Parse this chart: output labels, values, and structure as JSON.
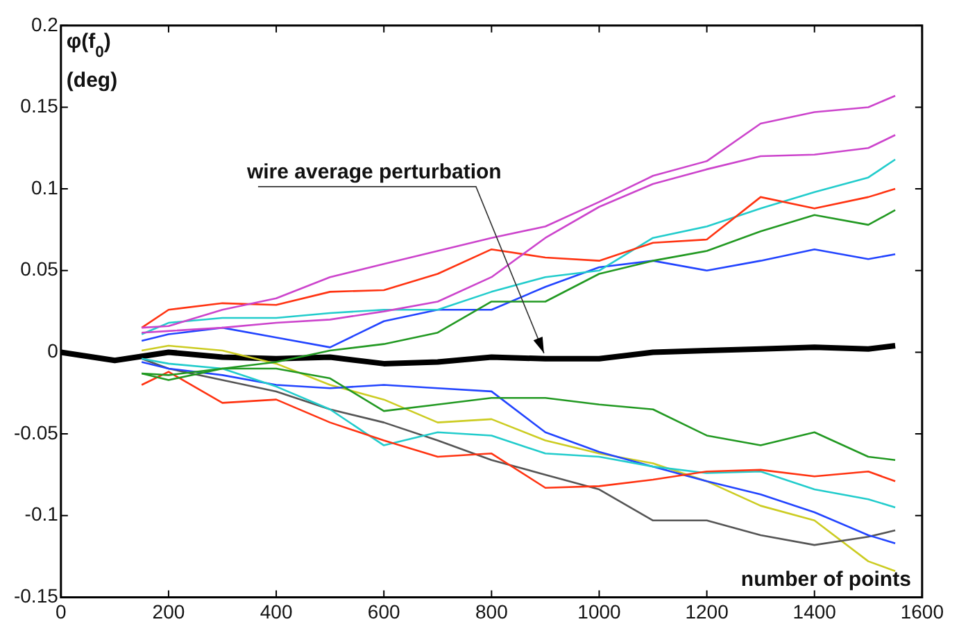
{
  "chart_data": {
    "type": "line",
    "xlabel": "number of points",
    "ylabel": "φ(f$_{0}$)\n(deg)",
    "x": [
      150,
      200,
      300,
      400,
      500,
      600,
      700,
      800,
      900,
      1000,
      1100,
      1200,
      1300,
      1400,
      1500,
      1550
    ],
    "xlim": [
      0,
      1600
    ],
    "xticks": [
      0,
      200,
      400,
      600,
      800,
      1000,
      1200,
      1400,
      1600
    ],
    "ylim": [
      -0.15,
      0.2
    ],
    "yticks": [
      -0.15,
      -0.1,
      -0.05,
      0,
      0.05,
      0.1,
      0.15,
      0.2
    ],
    "grid": false,
    "legend": false,
    "marker": "none",
    "line_style": "solid",
    "annotations": [
      {
        "text": "wire average perturbation",
        "x": 900,
        "y": -0.004
      }
    ],
    "series": [
      {
        "color": "#cc44cc",
        "values": [
          0.015,
          0.016,
          0.026,
          0.033,
          0.046,
          0.054,
          0.062,
          0.07,
          0.077,
          0.092,
          0.108,
          0.117,
          0.14,
          0.147,
          0.15,
          0.157
        ]
      },
      {
        "color": "#cc44cc",
        "values": [
          0.012,
          0.013,
          0.015,
          0.018,
          0.02,
          0.025,
          0.031,
          0.046,
          0.07,
          0.089,
          0.103,
          0.112,
          0.12,
          0.121,
          0.125,
          0.133
        ]
      },
      {
        "color": "#ff3311",
        "values": [
          0.015,
          0.026,
          0.03,
          0.029,
          0.037,
          0.038,
          0.048,
          0.063,
          0.058,
          0.056,
          0.067,
          0.069,
          0.095,
          0.088,
          0.095,
          0.1
        ]
      },
      {
        "color": "#22cccc",
        "values": [
          0.011,
          0.018,
          0.021,
          0.021,
          0.024,
          0.026,
          0.026,
          0.037,
          0.046,
          0.05,
          0.07,
          0.077,
          0.088,
          0.098,
          0.107,
          0.118
        ]
      },
      {
        "color": "#229922",
        "values": [
          -0.013,
          -0.014,
          -0.01,
          -0.006,
          0.001,
          0.005,
          0.012,
          0.031,
          0.031,
          0.048,
          0.056,
          0.062,
          0.074,
          0.084,
          0.078,
          0.087
        ]
      },
      {
        "color": "#2244ff",
        "values": [
          0.007,
          0.011,
          0.015,
          0.009,
          0.003,
          0.019,
          0.026,
          0.026,
          0.04,
          0.052,
          0.056,
          0.05,
          0.056,
          0.063,
          0.057,
          0.06
        ]
      },
      {
        "color": "#229922",
        "values": [
          -0.013,
          -0.017,
          -0.01,
          -0.01,
          -0.016,
          -0.036,
          -0.032,
          -0.028,
          -0.028,
          -0.032,
          -0.035,
          -0.051,
          -0.057,
          -0.049,
          -0.064,
          -0.066
        ]
      },
      {
        "color": "#ff3311",
        "values": [
          -0.02,
          -0.012,
          -0.031,
          -0.029,
          -0.043,
          -0.054,
          -0.064,
          -0.062,
          -0.083,
          -0.082,
          -0.078,
          -0.073,
          -0.072,
          -0.076,
          -0.073,
          -0.079
        ]
      },
      {
        "color": "#22cccc",
        "values": [
          -0.004,
          -0.007,
          -0.01,
          -0.021,
          -0.035,
          -0.057,
          -0.049,
          -0.051,
          -0.062,
          -0.064,
          -0.07,
          -0.074,
          -0.073,
          -0.084,
          -0.09,
          -0.095
        ]
      },
      {
        "color": "#2244ff",
        "values": [
          -0.006,
          -0.01,
          -0.014,
          -0.02,
          -0.022,
          -0.02,
          -0.022,
          -0.024,
          -0.049,
          -0.061,
          -0.07,
          -0.079,
          -0.087,
          -0.098,
          -0.112,
          -0.117
        ]
      },
      {
        "color": "#555555",
        "values": [
          -0.004,
          -0.01,
          -0.017,
          -0.024,
          -0.035,
          -0.043,
          -0.054,
          -0.066,
          -0.075,
          -0.084,
          -0.103,
          -0.103,
          -0.112,
          -0.118,
          -0.113,
          -0.109
        ]
      },
      {
        "color": "#cccc22",
        "values": [
          0.001,
          0.004,
          0.001,
          -0.007,
          -0.02,
          -0.029,
          -0.043,
          -0.041,
          -0.054,
          -0.062,
          -0.068,
          -0.079,
          -0.094,
          -0.103,
          -0.128,
          -0.134
        ]
      },
      {
        "color": "#000000",
        "x": [
          0,
          100,
          200,
          300,
          400,
          500,
          600,
          700,
          800,
          900,
          1000,
          1100,
          1200,
          1300,
          1400,
          1500,
          1550
        ],
        "values": [
          0,
          -0.005,
          0,
          -0.003,
          -0.004,
          -0.003,
          -0.007,
          -0.006,
          -0.003,
          -0.004,
          -0.004,
          0,
          0.001,
          0.002,
          0.003,
          0.002,
          0.004
        ]
      }
    ]
  }
}
